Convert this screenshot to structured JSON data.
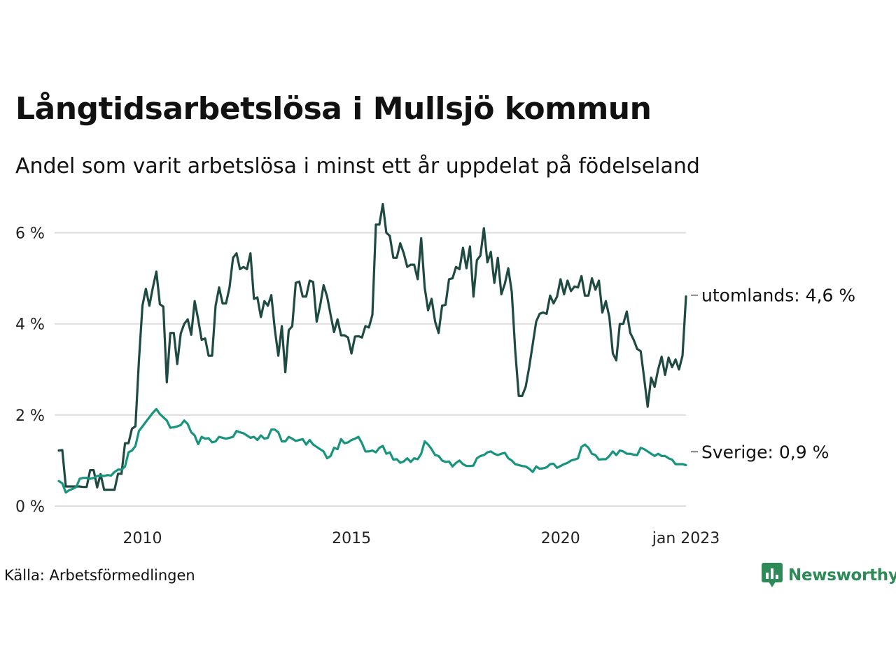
{
  "title": "Långtidsarbetslösa i Mullsjö kommun",
  "subtitle": "Andel som varit arbetslösa i minst ett år uppdelat på födelseland",
  "source": "Källa: Arbetsförmedlingen",
  "brand": {
    "name": "Newsworthy",
    "color": "#2e8b57",
    "icon": "newsworthy-logo-icon"
  },
  "chart_data": {
    "type": "line",
    "x_start": "2008-01",
    "frequency": "monthly",
    "xlim": [
      "2008-01",
      "2023-01"
    ],
    "ylim": [
      0,
      6.5
    ],
    "y_ticks": [
      0,
      2,
      4,
      6
    ],
    "y_tick_labels": [
      "0 %",
      "2 %",
      "4 %",
      "6 %"
    ],
    "x_ticks": [
      "2010-01",
      "2015-01",
      "2020-01",
      "2023-01"
    ],
    "x_tick_labels": [
      "2010",
      "2015",
      "2020",
      "jan 2023"
    ],
    "grid": true,
    "series": [
      {
        "name": "utomlands",
        "label": "utomlands: 4,6 %",
        "color": "#1f4a42",
        "values": [
          1.22,
          1.23,
          0.43,
          0.43,
          0.43,
          0.43,
          0.43,
          0.42,
          0.42,
          0.79,
          0.79,
          0.41,
          0.7,
          0.36,
          0.36,
          0.36,
          0.36,
          0.71,
          0.71,
          1.38,
          1.38,
          1.7,
          1.75,
          3.2,
          4.4,
          4.77,
          4.4,
          4.8,
          5.15,
          4.43,
          4.38,
          2.72,
          3.8,
          3.8,
          3.12,
          3.79,
          4.0,
          4.1,
          3.76,
          4.5,
          4.1,
          3.65,
          3.68,
          3.3,
          3.3,
          4.4,
          4.8,
          4.45,
          4.45,
          4.8,
          5.45,
          5.55,
          5.2,
          5.25,
          5.2,
          5.55,
          4.55,
          4.58,
          4.15,
          4.5,
          4.4,
          4.63,
          3.88,
          3.3,
          3.95,
          2.94,
          3.86,
          3.95,
          4.9,
          4.93,
          4.6,
          4.6,
          4.95,
          4.92,
          4.05,
          4.4,
          4.85,
          4.6,
          4.2,
          3.82,
          4.1,
          3.75,
          3.75,
          3.7,
          3.35,
          3.72,
          3.73,
          3.7,
          3.95,
          3.92,
          4.2,
          6.18,
          6.18,
          6.63,
          6.0,
          5.93,
          5.45,
          5.45,
          5.77,
          5.55,
          5.25,
          5.3,
          5.3,
          4.98,
          5.88,
          4.8,
          4.3,
          4.55,
          4.05,
          3.8,
          4.4,
          4.42,
          4.98,
          5.0,
          5.25,
          5.2,
          5.67,
          5.22,
          5.7,
          4.6,
          5.4,
          5.5,
          6.1,
          5.35,
          5.58,
          4.9,
          5.45,
          4.65,
          4.88,
          5.22,
          4.7,
          3.4,
          2.42,
          2.42,
          2.62,
          3.05,
          3.55,
          4.05,
          4.22,
          4.25,
          4.22,
          4.62,
          4.45,
          4.6,
          4.98,
          4.65,
          4.95,
          4.72,
          4.82,
          4.8,
          5.05,
          4.62,
          4.62,
          5.0,
          4.75,
          4.95,
          4.25,
          4.5,
          4.15,
          3.35,
          3.2,
          4.0,
          4.0,
          4.27,
          3.8,
          3.65,
          3.45,
          3.4,
          2.8,
          2.18,
          2.82,
          2.62,
          3.0,
          3.28,
          2.88,
          3.26,
          3.05,
          3.22,
          3.0,
          3.3,
          4.6
        ]
      },
      {
        "name": "Sverige",
        "label": "Sverige: 0,9 %",
        "color": "#17937e",
        "values": [
          0.55,
          0.5,
          0.3,
          0.35,
          0.38,
          0.42,
          0.6,
          0.62,
          0.62,
          0.6,
          0.62,
          0.66,
          0.67,
          0.66,
          0.68,
          0.67,
          0.75,
          0.8,
          0.8,
          0.87,
          1.18,
          1.22,
          1.32,
          1.65,
          1.75,
          1.85,
          1.95,
          2.05,
          2.13,
          2.02,
          1.95,
          1.88,
          1.72,
          1.73,
          1.75,
          1.78,
          1.88,
          1.8,
          1.62,
          1.55,
          1.36,
          1.52,
          1.48,
          1.49,
          1.4,
          1.42,
          1.52,
          1.5,
          1.48,
          1.5,
          1.52,
          1.65,
          1.62,
          1.6,
          1.55,
          1.5,
          1.52,
          1.45,
          1.55,
          1.48,
          1.5,
          1.68,
          1.68,
          1.62,
          1.42,
          1.42,
          1.52,
          1.48,
          1.43,
          1.45,
          1.47,
          1.35,
          1.45,
          1.35,
          1.3,
          1.25,
          1.2,
          1.05,
          1.1,
          1.28,
          1.25,
          1.47,
          1.38,
          1.4,
          1.45,
          1.48,
          1.52,
          1.38,
          1.2,
          1.2,
          1.22,
          1.18,
          1.28,
          1.32,
          1.15,
          1.18,
          1.02,
          1.03,
          0.95,
          0.98,
          1.05,
          0.97,
          1.05,
          1.03,
          1.15,
          1.42,
          1.35,
          1.25,
          1.12,
          1.1,
          1.0,
          0.97,
          0.98,
          0.87,
          0.95,
          1.0,
          0.92,
          0.88,
          0.88,
          0.89,
          1.05,
          1.1,
          1.12,
          1.18,
          1.2,
          1.15,
          1.12,
          1.15,
          1.17,
          1.05,
          1.0,
          0.92,
          0.9,
          0.88,
          0.87,
          0.82,
          0.75,
          0.87,
          0.82,
          0.83,
          0.85,
          0.92,
          0.93,
          0.84,
          0.88,
          0.92,
          0.95,
          1.0,
          1.02,
          1.05,
          1.3,
          1.35,
          1.28,
          1.15,
          1.12,
          1.02,
          1.03,
          1.03,
          1.1,
          1.2,
          1.12,
          1.22,
          1.2,
          1.15,
          1.15,
          1.13,
          1.12,
          1.28,
          1.25,
          1.2,
          1.15,
          1.1,
          1.15,
          1.1,
          1.1,
          1.05,
          1.02,
          0.92,
          0.92,
          0.92,
          0.9
        ]
      }
    ]
  }
}
